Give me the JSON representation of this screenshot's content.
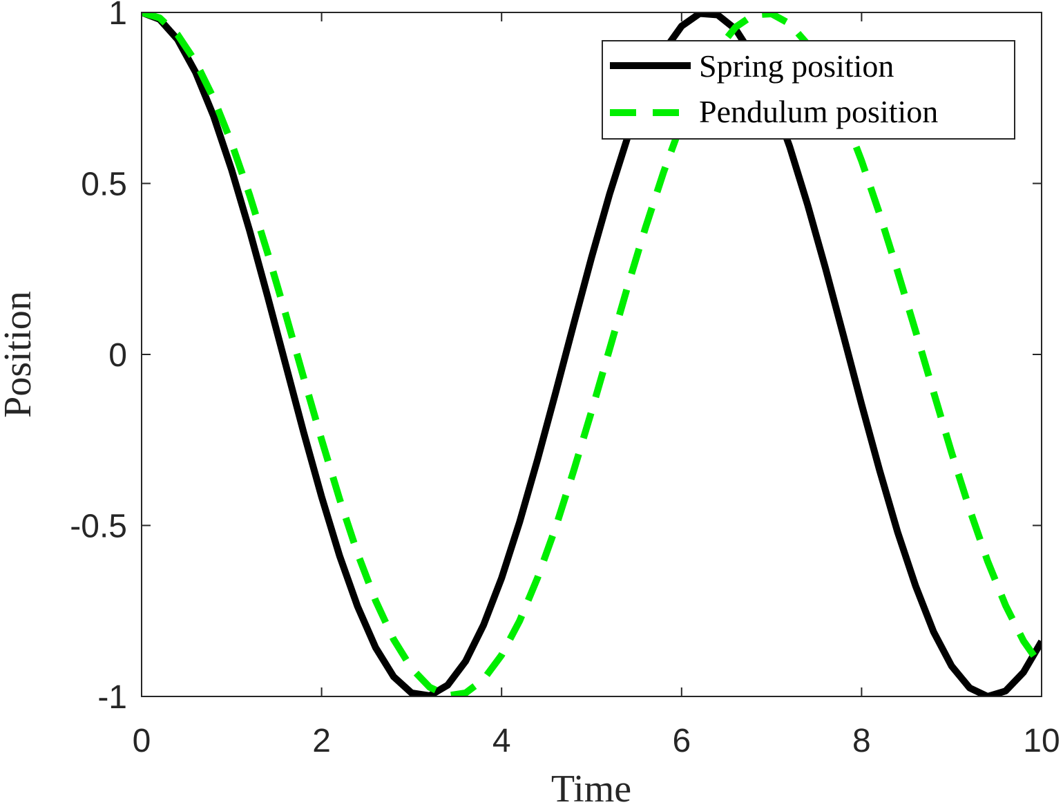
{
  "chart_data": {
    "type": "line",
    "title": "",
    "xlabel": "Time",
    "ylabel": "Position",
    "xlim": [
      0,
      10
    ],
    "ylim": [
      -1,
      1
    ],
    "xticks": [
      0,
      2,
      4,
      6,
      8,
      10
    ],
    "xtick_labels": [
      "0",
      "2",
      "4",
      "6",
      "8",
      "10"
    ],
    "yticks": [
      -1,
      -0.5,
      0,
      0.5,
      1
    ],
    "ytick_labels": [
      "-1",
      "-0.5",
      "0",
      "0.5",
      "1"
    ],
    "grid": false,
    "legend_position": "top-right",
    "x": [
      0,
      0.2,
      0.4,
      0.6,
      0.8,
      1.0,
      1.2,
      1.4,
      1.6,
      1.8,
      2.0,
      2.2,
      2.4,
      2.6,
      2.8,
      3.0,
      3.2,
      3.4,
      3.6,
      3.8,
      4.0,
      4.2,
      4.4,
      4.6,
      4.8,
      5.0,
      5.2,
      5.4,
      5.6,
      5.8,
      6.0,
      6.2,
      6.4,
      6.6,
      6.8,
      7.0,
      7.2,
      7.4,
      7.6,
      7.8,
      8.0,
      8.2,
      8.4,
      8.6,
      8.8,
      9.0,
      9.2,
      9.4,
      9.6,
      9.8,
      10.0
    ],
    "series": [
      {
        "name": "Spring position",
        "color": "#000000",
        "line_style": "solid",
        "values": [
          1.0,
          0.98,
          0.921,
          0.825,
          0.697,
          0.54,
          0.362,
          0.17,
          -0.029,
          -0.227,
          -0.416,
          -0.589,
          -0.737,
          -0.857,
          -0.942,
          -0.99,
          -0.998,
          -0.967,
          -0.897,
          -0.791,
          -0.654,
          -0.49,
          -0.307,
          -0.112,
          0.087,
          0.284,
          0.469,
          0.635,
          0.776,
          0.886,
          0.96,
          0.997,
          0.993,
          0.951,
          0.869,
          0.754,
          0.608,
          0.438,
          0.251,
          0.054,
          -0.146,
          -0.339,
          -0.519,
          -0.677,
          -0.811,
          -0.911,
          -0.975,
          -1.0,
          -0.984,
          -0.929,
          -0.839
        ]
      },
      {
        "name": "Pendulum position",
        "color": "#00ee00",
        "line_style": "dashed",
        "values": [
          1.0,
          0.984,
          0.935,
          0.856,
          0.749,
          0.618,
          0.466,
          0.297,
          0.118,
          -0.067,
          -0.249,
          -0.423,
          -0.582,
          -0.72,
          -0.833,
          -0.918,
          -0.973,
          -0.998,
          -0.99,
          -0.95,
          -0.879,
          -0.779,
          -0.653,
          -0.506,
          -0.341,
          -0.166,
          0.016,
          0.198,
          0.372,
          0.533,
          0.677,
          0.797,
          0.891,
          0.957,
          0.993,
          0.996,
          0.967,
          0.907,
          0.818,
          0.703,
          0.566,
          0.411,
          0.243,
          0.068,
          -0.11,
          -0.287,
          -0.453,
          -0.604,
          -0.734,
          -0.838,
          -0.913
        ]
      }
    ]
  }
}
